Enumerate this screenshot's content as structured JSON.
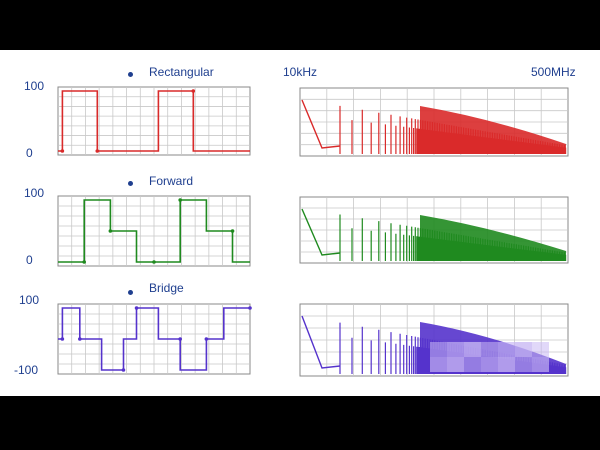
{
  "header": {
    "freq_start": "10kHz",
    "freq_end": "500MHz"
  },
  "chart_data": [
    {
      "type": "line",
      "title": "Rectangular",
      "panel": "time-domain",
      "color": "#d92a2a",
      "ytick_labels": [
        "100",
        "0"
      ],
      "ylim": [
        0,
        100
      ],
      "x": [
        0,
        0.5,
        0.5,
        4.5,
        4.5,
        11.5,
        11.5,
        15.5,
        15.5,
        22
      ],
      "y": [
        0,
        0,
        100,
        100,
        0,
        0,
        100,
        100,
        0,
        0
      ]
    },
    {
      "type": "line",
      "title": "",
      "panel": "spectrum",
      "color": "#d92a2a",
      "x_range": [
        "10kHz",
        "500MHz"
      ],
      "note": "Dense harmonic spectrum, amplitude decaying toward high frequency"
    },
    {
      "type": "line",
      "title": "Forward",
      "panel": "time-domain",
      "color": "#1f8a1f",
      "ytick_labels": [
        "100",
        "0"
      ],
      "ylim": [
        0,
        100
      ],
      "x": [
        0,
        3,
        3,
        6,
        6,
        9,
        9,
        11,
        11,
        14,
        14,
        17,
        17,
        20,
        20,
        22
      ],
      "y": [
        0,
        0,
        100,
        100,
        50,
        50,
        0,
        0,
        0,
        0,
        100,
        100,
        50,
        50,
        0,
        0
      ]
    },
    {
      "type": "line",
      "title": "",
      "panel": "spectrum",
      "color": "#1f8a1f",
      "x_range": [
        "10kHz",
        "500MHz"
      ],
      "note": "Dense harmonic spectrum"
    },
    {
      "type": "line",
      "title": "Bridge",
      "panel": "time-domain",
      "color": "#5533cc",
      "ytick_labels": [
        "100",
        "-100"
      ],
      "ylim": [
        -100,
        100
      ],
      "x": [
        0,
        0.5,
        0.5,
        2.5,
        2.5,
        5,
        5,
        7.5,
        7.5,
        9,
        9,
        11.5,
        11.5,
        14,
        14,
        17,
        17,
        19,
        19,
        22
      ],
      "y": [
        0,
        0,
        100,
        100,
        0,
        0,
        -100,
        -100,
        0,
        0,
        100,
        100,
        0,
        0,
        -100,
        -100,
        0,
        0,
        100,
        100
      ]
    },
    {
      "type": "line",
      "title": "",
      "panel": "spectrum",
      "color": "#5533cc",
      "x_range": [
        "10kHz",
        "500MHz"
      ],
      "note": "Dense harmonic spectrum, partially obscured"
    }
  ],
  "colors": {
    "grid": "#c8c8c8",
    "frame": "#888888",
    "label_blue": "#1f3f8f",
    "mosaic": "#c8b8f4"
  }
}
